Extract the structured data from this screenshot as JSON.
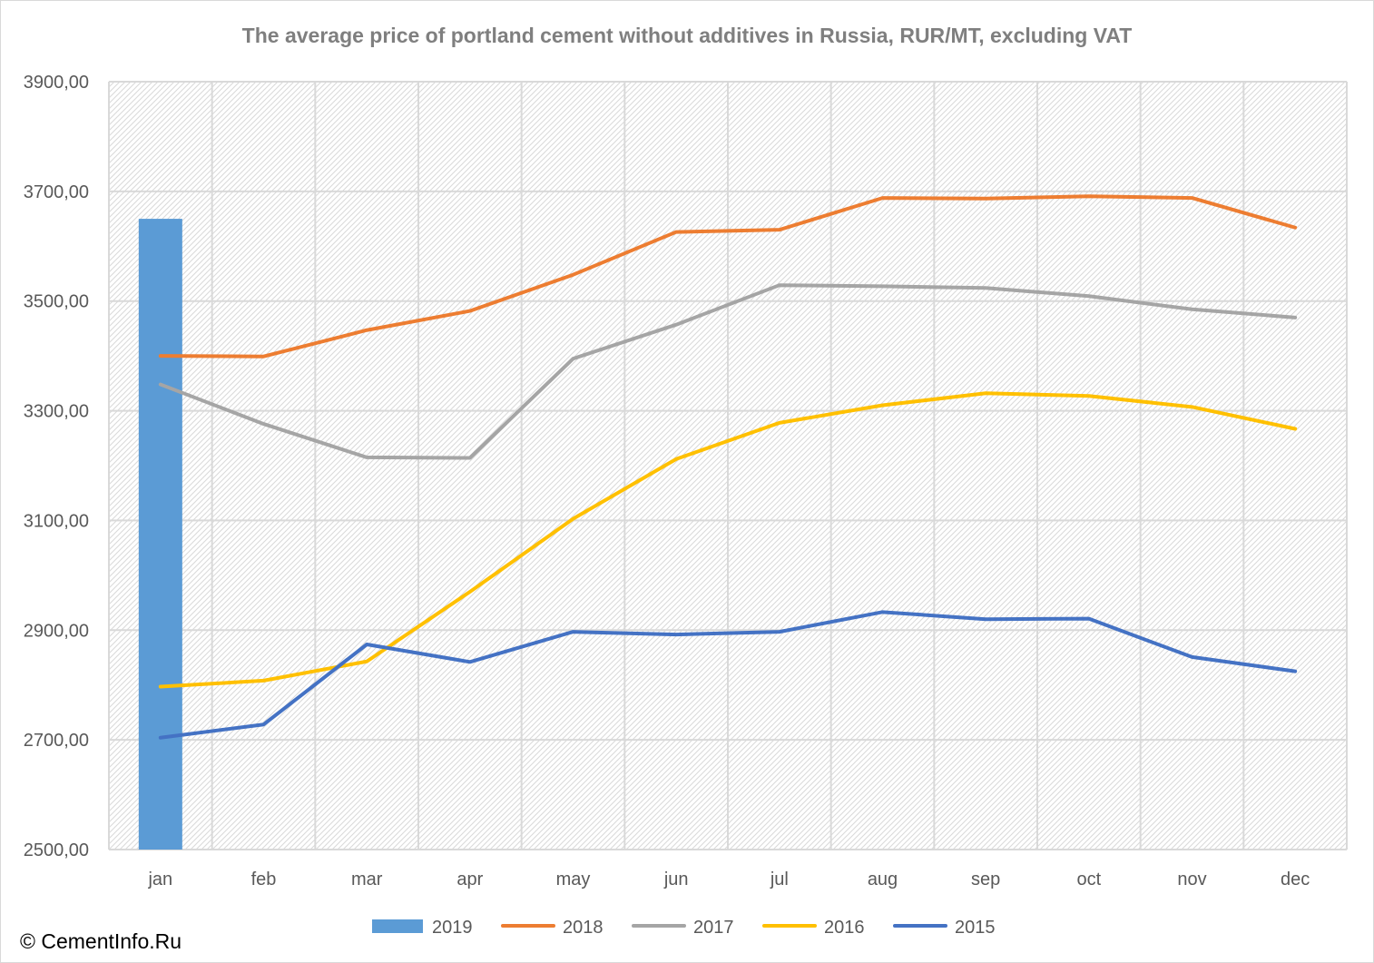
{
  "chart_data": {
    "type": "line",
    "title": "The average price of portland cement without additives in Russia, RUR/MT,  excluding VAT",
    "xlabel": "",
    "ylabel": "",
    "categories": [
      "jan",
      "feb",
      "mar",
      "apr",
      "may",
      "jun",
      "jul",
      "aug",
      "sep",
      "oct",
      "nov",
      "dec"
    ],
    "ylim": [
      2500,
      3900
    ],
    "yticks": [
      2500,
      2700,
      2900,
      3100,
      3300,
      3500,
      3700,
      3900
    ],
    "ytick_labels": [
      "2500,00",
      "2700,00",
      "2900,00",
      "3100,00",
      "3300,00",
      "3500,00",
      "3700,00",
      "3900,00"
    ],
    "grid": true,
    "legend_position": "bottom",
    "series": [
      {
        "name": "2019",
        "kind": "bar",
        "color": "#5b9bd5",
        "values": [
          3650,
          null,
          null,
          null,
          null,
          null,
          null,
          null,
          null,
          null,
          null,
          null
        ]
      },
      {
        "name": "2018",
        "kind": "line",
        "color": "#ed7d31",
        "values": [
          3400,
          3399,
          3447,
          3482,
          3548,
          3626,
          3630,
          3688,
          3687,
          3691,
          3688,
          3634
        ]
      },
      {
        "name": "2017",
        "kind": "line",
        "color": "#a5a5a5",
        "values": [
          3348,
          3276,
          3215,
          3214,
          3395,
          3457,
          3529,
          3527,
          3524,
          3509,
          3485,
          3470
        ]
      },
      {
        "name": "2016",
        "kind": "line",
        "color": "#ffc000",
        "values": [
          2797,
          2808,
          2843,
          2970,
          3103,
          3212,
          3278,
          3310,
          3332,
          3327,
          3307,
          3267
        ]
      },
      {
        "name": "2015",
        "kind": "line",
        "color": "#4472c4",
        "values": [
          2704,
          2728,
          2874,
          2842,
          2897,
          2892,
          2897,
          2933,
          2920,
          2921,
          2851,
          2825
        ]
      }
    ]
  },
  "footer": {
    "copyright": "© CementInfo.Ru"
  }
}
